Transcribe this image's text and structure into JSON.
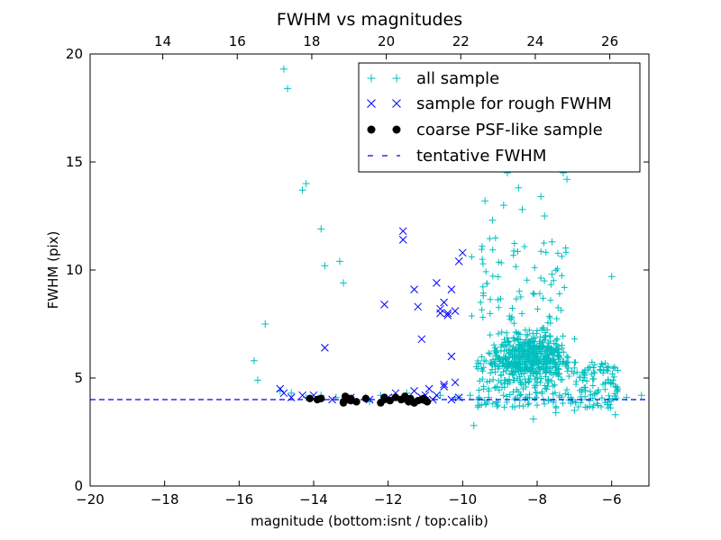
{
  "chart_data": {
    "type": "scatter",
    "title": "FWHM vs magnitudes",
    "xlabel": "magnitude (bottom:isnt / top:calib)",
    "ylabel": "FWHM (pix)",
    "xlim": [
      -20,
      -5
    ],
    "ylim": [
      0,
      20
    ],
    "x_ticks": [
      "−20",
      "−18",
      "−16",
      "−14",
      "−12",
      "−10",
      "−8",
      "−6"
    ],
    "y_ticks": [
      "0",
      "5",
      "10",
      "15",
      "20"
    ],
    "top_axis": {
      "xlim": [
        12.05,
        27.05
      ],
      "ticks": [
        "14",
        "16",
        "18",
        "20",
        "22",
        "24",
        "26"
      ]
    },
    "grid": false,
    "legend_position": "top-right",
    "series": [
      {
        "name": "all sample",
        "marker": "plus",
        "color": "#00BFBF",
        "x": [
          -14.8,
          -14.7,
          -14.3,
          -14.2,
          -13.8,
          -13.7,
          -13.3,
          -13.2,
          -15.3,
          -15.6,
          -15.5,
          -14.9,
          -14.6,
          -14.2,
          -13.8,
          -13.4,
          -13.0,
          -12.6,
          -12.2,
          -11.9,
          -11.5,
          -11.0,
          -10.6,
          -10.2,
          -9.8,
          -12.5,
          -11.6,
          -10.1,
          -9.6,
          -9.3,
          -9.1,
          -8.9,
          -8.6,
          -8.3,
          -8.0,
          -7.7,
          -7.4,
          -7.1,
          -6.8,
          -6.4,
          -6.1,
          -5.6,
          -5.2,
          -5.9,
          -7.0,
          -9.7,
          -8.1,
          -7.5,
          -7.3,
          -7.2,
          -6.0,
          -8.8,
          -7.9,
          -7.6,
          -9.4,
          -7.8,
          -8.5,
          -8.9,
          -7.6,
          -8.4,
          -9.2
        ],
        "y": [
          19.3,
          18.4,
          13.7,
          14.0,
          11.9,
          10.2,
          10.4,
          9.4,
          7.5,
          5.8,
          4.9,
          4.4,
          4.3,
          4.1,
          4.2,
          4.1,
          4.0,
          4.1,
          4.2,
          4.1,
          4.3,
          4.1,
          4.2,
          4.1,
          4.2,
          3.9,
          4.0,
          4.1,
          4.0,
          4.1,
          3.9,
          4.2,
          4.0,
          4.1,
          4.3,
          4.0,
          4.2,
          4.1,
          4.0,
          4.3,
          3.9,
          4.1,
          4.2,
          3.3,
          3.5,
          2.8,
          3.1,
          3.4,
          14.5,
          14.2,
          9.7,
          14.5,
          13.4,
          11.3,
          13.2,
          12.5,
          13.8,
          13.0,
          9.8,
          12.8,
          12.3
        ]
      },
      {
        "name": "sample for rough FWHM",
        "marker": "x",
        "color": "#0000FF",
        "x": [
          -14.9,
          -14.8,
          -14.6,
          -14.3,
          -13.7,
          -12.1,
          -11.6,
          -11.6,
          -11.3,
          -11.2,
          -11.1,
          -11.0,
          -10.7,
          -10.6,
          -10.5,
          -10.4,
          -10.3,
          -10.2,
          -10.1,
          -10.0,
          -10.6,
          -10.4,
          -10.3,
          -10.2,
          -10.1,
          -10.5,
          -10.8,
          -11.1,
          -11.6,
          -11.8,
          -12.0,
          -12.5,
          -13.0,
          -13.5,
          -14.0,
          -10.9,
          -10.7,
          -10.5,
          -11.3,
          -10.3
        ],
        "y": [
          4.5,
          4.3,
          4.1,
          4.2,
          6.4,
          8.4,
          11.8,
          11.4,
          9.1,
          8.3,
          6.8,
          4.2,
          9.4,
          8.0,
          8.5,
          8.0,
          9.1,
          8.1,
          10.4,
          10.8,
          8.2,
          7.9,
          6.0,
          4.8,
          4.1,
          4.7,
          4.0,
          4.1,
          4.0,
          4.3,
          4.1,
          4.0,
          4.1,
          4.0,
          4.2,
          4.5,
          4.2,
          4.6,
          4.4,
          4.0
        ],
        "description": ""
      },
      {
        "name": "coarse PSF-like sample",
        "marker": "circle",
        "color": "#000000",
        "x": [
          -14.1,
          -13.9,
          -13.8,
          -13.2,
          -13.15,
          -13.1,
          -13.0,
          -12.85,
          -12.6,
          -12.2,
          -12.1,
          -11.95,
          -11.8,
          -11.65,
          -11.55,
          -11.45,
          -11.4,
          -11.3,
          -11.2,
          -11.1,
          -11.05,
          -11.0,
          -10.95,
          -13.2,
          -13.0,
          -12.1,
          -11.5,
          -11.3
        ],
        "y": [
          4.05,
          4.0,
          4.05,
          3.9,
          4.15,
          4.0,
          3.95,
          3.9,
          4.05,
          3.85,
          4.0,
          3.95,
          4.1,
          4.0,
          4.15,
          3.9,
          4.05,
          3.85,
          3.95,
          4.0,
          4.05,
          3.95,
          3.9,
          3.85,
          4.05,
          4.1,
          4.0,
          3.85
        ]
      },
      {
        "name": "tentative FWHM",
        "marker": "dashed-line",
        "color": "#0000FF",
        "y": 4.0
      }
    ],
    "dense_cluster": {
      "series": "all sample",
      "x_range": [
        -10.0,
        -5.5
      ],
      "y_range": [
        3.4,
        12.0
      ],
      "center_x": -8.2,
      "center_y": 6.0
    }
  },
  "colors": {
    "all_sample": "#00BFBF",
    "rough_sample": "#0000FF",
    "psf_sample": "#000000",
    "tentative_line": "#0000FF"
  }
}
